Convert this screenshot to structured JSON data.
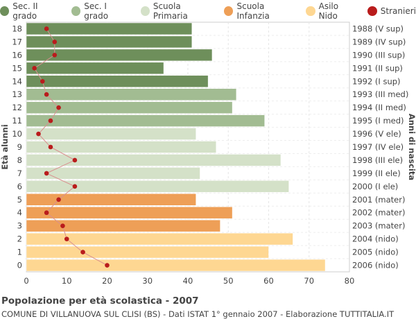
{
  "chart_data": {
    "type": "bar",
    "orientation": "horizontal",
    "categories": [
      "18",
      "17",
      "16",
      "15",
      "14",
      "13",
      "12",
      "11",
      "10",
      "9",
      "8",
      "7",
      "6",
      "5",
      "4",
      "3",
      "2",
      "1",
      "0"
    ],
    "birth_years": [
      "1988 (V sup)",
      "1989 (IV sup)",
      "1990 (III sup)",
      "1991 (II sup)",
      "1992 (I sup)",
      "1993 (III med)",
      "1994 (II med)",
      "1995 (I med)",
      "1996 (V ele)",
      "1997 (IV ele)",
      "1998 (III ele)",
      "1999 (II ele)",
      "2000 (I ele)",
      "2001 (mater)",
      "2002 (mater)",
      "2003 (mater)",
      "2004 (nido)",
      "2005 (nido)",
      "2006 (nido)"
    ],
    "values": [
      41,
      41,
      46,
      34,
      45,
      52,
      51,
      59,
      42,
      47,
      63,
      43,
      65,
      42,
      51,
      48,
      66,
      60,
      74
    ],
    "groups": [
      "sec2",
      "sec2",
      "sec2",
      "sec2",
      "sec2",
      "sec1",
      "sec1",
      "sec1",
      "prim",
      "prim",
      "prim",
      "prim",
      "prim",
      "inf",
      "inf",
      "inf",
      "nido",
      "nido",
      "nido"
    ],
    "stranieri": [
      5,
      7,
      7,
      2,
      4,
      5,
      8,
      6,
      3,
      6,
      12,
      5,
      12,
      8,
      5,
      9,
      10,
      14,
      20
    ],
    "legend": [
      {
        "key": "sec2",
        "label": "Sec. II grado",
        "color": "#6e8f5b"
      },
      {
        "key": "sec1",
        "label": "Sec. I grado",
        "color": "#a2bc92"
      },
      {
        "key": "prim",
        "label": "Scuola Primaria",
        "color": "#d4e1c8"
      },
      {
        "key": "inf",
        "label": "Scuola Infanzia",
        "color": "#ee9f57"
      },
      {
        "key": "nido",
        "label": "Asilo Nido",
        "color": "#fed792"
      },
      {
        "key": "stranieri",
        "label": "Stranieri",
        "color": "#b91c1c"
      }
    ],
    "xlim": [
      0,
      80
    ],
    "xticks": [
      0,
      10,
      20,
      30,
      40,
      50,
      60,
      70,
      80
    ],
    "ylabel_left": "Età alunni",
    "ylabel_right": "Anni di nascita",
    "grid": true,
    "legend_position": "top"
  },
  "caption": {
    "title": "Popolazione per età scolastica - 2007",
    "subtitle": "COMUNE DI VILLANUOVA SUL CLISI (BS) - Dati ISTAT 1° gennaio 2007 - Elaborazione TUTTITALIA.IT"
  }
}
